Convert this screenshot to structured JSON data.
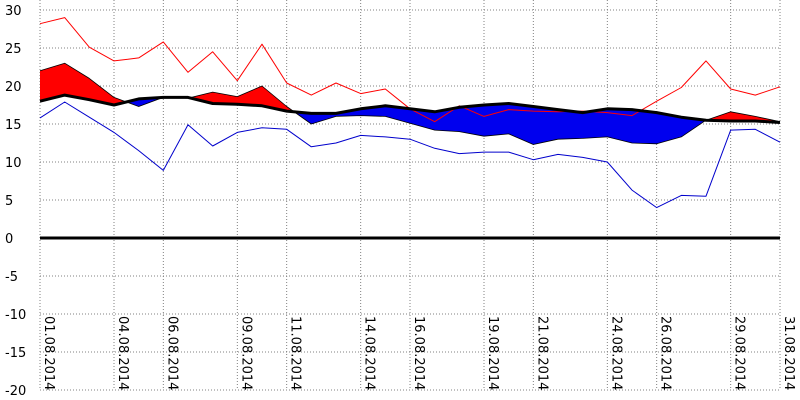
{
  "chart_data": {
    "type": "area",
    "title": "",
    "xlabel": "",
    "ylabel": "",
    "ylim": [
      -20,
      30
    ],
    "yticks": [
      "30",
      "25",
      "20",
      "15",
      "10",
      "5",
      "0",
      "-5",
      "-10",
      "-15",
      "-20"
    ],
    "x_tick_labels": [
      "01.08.2014",
      "04.08.2014",
      "06.08.2014",
      "09.08.2014",
      "11.08.2014",
      "14.08.2014",
      "16.08.2014",
      "19.08.2014",
      "21.08.2014",
      "24.08.2014",
      "26.08.2014",
      "29.08.2014",
      "31.08.2014"
    ],
    "days": [
      "01.08.2014",
      "02.08.2014",
      "03.08.2014",
      "04.08.2014",
      "05.08.2014",
      "06.08.2014",
      "07.08.2014",
      "08.08.2014",
      "09.08.2014",
      "10.08.2014",
      "11.08.2014",
      "12.08.2014",
      "13.08.2014",
      "14.08.2014",
      "15.08.2014",
      "16.08.2014",
      "17.08.2014",
      "18.08.2014",
      "19.08.2014",
      "20.08.2014",
      "21.08.2014",
      "22.08.2014",
      "23.08.2014",
      "24.08.2014",
      "25.08.2014",
      "26.08.2014",
      "27.08.2014",
      "28.08.2014",
      "29.08.2014",
      "30.08.2014",
      "31.08.2014"
    ],
    "grid": true,
    "series": [
      {
        "values": [
          28.2,
          29.0,
          25.1,
          23.3,
          23.7,
          25.8,
          21.8,
          24.5,
          20.7,
          25.5,
          20.4,
          18.8,
          20.4,
          19.0,
          19.6,
          17.0,
          15.3,
          17.4,
          16.0,
          16.9,
          16.7,
          16.6,
          16.7,
          16.5,
          16.1,
          18.0,
          19.8,
          23.3,
          19.6,
          18.8,
          19.9
        ]
      },
      {
        "values": [
          22.0,
          23.0,
          21.0,
          18.5,
          17.3,
          18.5,
          18.4,
          19.2,
          18.6,
          20.0,
          17.3,
          15.0,
          16.0,
          16.1,
          16.0,
          15.1,
          14.2,
          14.0,
          13.4,
          13.7,
          12.3,
          13.0,
          13.1,
          13.3,
          12.5,
          12.4,
          13.3,
          15.5,
          16.6,
          16.0,
          15.3
        ]
      },
      {
        "values": [
          18.0,
          18.8,
          18.2,
          17.5,
          18.3,
          18.5,
          18.5,
          17.7,
          17.6,
          17.4,
          16.7,
          16.4,
          16.4,
          17.0,
          17.4,
          17.0,
          16.6,
          17.2,
          17.5,
          17.7,
          17.3,
          16.9,
          16.5,
          17.0,
          16.9,
          16.5,
          15.9,
          15.5,
          15.4,
          15.4,
          15.2
        ]
      },
      {
        "values": [
          15.8,
          17.9,
          15.9,
          13.9,
          11.5,
          8.9,
          14.9,
          12.1,
          13.9,
          14.5,
          14.3,
          12.0,
          12.5,
          13.5,
          13.3,
          13.0,
          11.8,
          11.1,
          11.3,
          11.3,
          10.3,
          11.0,
          10.6,
          10.0,
          6.3,
          4.0,
          5.6,
          5.5,
          14.2,
          14.3,
          12.6
        ]
      }
    ],
    "colors": {
      "max_line": "#ff0000",
      "min_line": "#0000cc",
      "mean_line": "#000000",
      "above_fill": "#ff0000",
      "below_fill": "#0000ee",
      "grid": "#808080",
      "zero_line": "#000000"
    }
  }
}
